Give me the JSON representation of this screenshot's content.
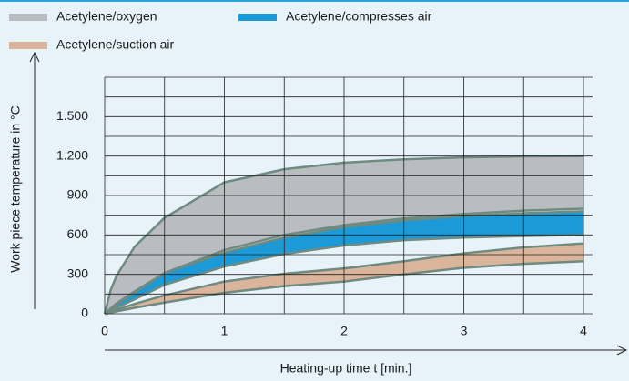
{
  "chart_data": {
    "type": "band",
    "x_label": "Heating-up time t [min.]",
    "y_label": "Work piece temperature in °C",
    "x": [
      0,
      0.05,
      0.1,
      0.25,
      0.5,
      1,
      1.5,
      2,
      2.5,
      3,
      3.5,
      4
    ],
    "series": [
      {
        "name": "Acetylene/oxygen",
        "color": "#b9bdc1",
        "edge": "#6f8a80",
        "upper": [
          0,
          180,
          290,
          510,
          730,
          1000,
          1100,
          1150,
          1175,
          1190,
          1198,
          1200
        ],
        "lower": [
          0,
          40,
          80,
          170,
          310,
          485,
          600,
          675,
          725,
          760,
          785,
          800
        ]
      },
      {
        "name": "Acetylene/compresses  air",
        "color": "#1b9ad7",
        "edge": "#6f8a80",
        "upper": [
          0,
          30,
          70,
          160,
          310,
          465,
          580,
          660,
          710,
          745,
          765,
          780
        ],
        "lower": [
          0,
          20,
          45,
          110,
          220,
          360,
          455,
          520,
          560,
          580,
          592,
          600
        ]
      },
      {
        "name": "Acetylene/suction  air",
        "color": "#dab59b",
        "edge": "#6f8a80",
        "upper": [
          0,
          15,
          30,
          75,
          140,
          245,
          305,
          345,
          400,
          460,
          505,
          535
        ],
        "lower": [
          0,
          8,
          18,
          45,
          85,
          160,
          210,
          245,
          300,
          350,
          380,
          400
        ]
      }
    ],
    "xlim": [
      0,
      4
    ],
    "ylim": [
      0,
      1800
    ],
    "xticks": [
      0,
      1,
      2,
      3,
      4
    ],
    "yticks": [
      0,
      300,
      600,
      900,
      {
        "value": 1200,
        "label": "1.200"
      },
      {
        "value": 1500,
        "label": "1.500"
      }
    ],
    "xgrid": [
      0,
      0.5,
      1,
      1.5,
      2,
      2.5,
      3,
      3.5,
      4
    ],
    "ygrid": [
      0,
      150,
      300,
      450,
      600,
      750,
      900,
      1050,
      1200,
      1350,
      1500,
      1650,
      1800
    ],
    "grid": true
  }
}
